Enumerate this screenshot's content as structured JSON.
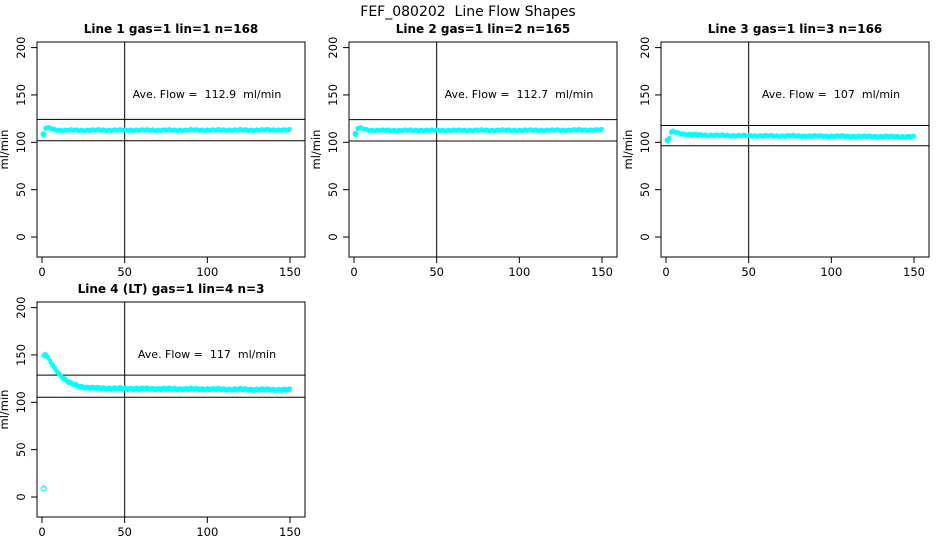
{
  "title": "FEF_080202  Line Flow Shapes",
  "accent_color": "#00FFFF",
  "axis_color": "#000000",
  "chart_data": [
    {
      "type": "scatter",
      "title": "Line 1 gas=1 lin=1 n=168",
      "line": 1,
      "gas": 1,
      "lin": 1,
      "n": 168,
      "annotation": "Ave. Flow =  112.9  ml/min",
      "ave_flow": 112.9,
      "ylabel": "ml/min",
      "xlabel": "",
      "xlim": [
        0,
        150
      ],
      "ylim": [
        0,
        200
      ],
      "xticks": [
        0,
        50,
        100,
        150
      ],
      "yticks": [
        0,
        50,
        100,
        150,
        200
      ],
      "vline_x": 50,
      "band_lines": [
        124.2,
        101.6
      ],
      "band_halfwidth": 0.6,
      "color": "#00FFFF",
      "points": [
        [
          1,
          108.5
        ],
        [
          2,
          114.8
        ],
        [
          3,
          115.2
        ],
        [
          4,
          115.0
        ],
        [
          5,
          114.6
        ],
        [
          6,
          114.2
        ],
        [
          8,
          113.4
        ],
        [
          10,
          112.9
        ],
        [
          14,
          112.7
        ],
        [
          18,
          112.9
        ],
        [
          22,
          112.7
        ],
        [
          26,
          112.9
        ],
        [
          30,
          112.8
        ],
        [
          35,
          113.0
        ],
        [
          40,
          112.8
        ],
        [
          45,
          112.9
        ],
        [
          50,
          112.8
        ],
        [
          55,
          113.0
        ],
        [
          60,
          112.8
        ],
        [
          65,
          112.9
        ],
        [
          70,
          112.9
        ],
        [
          75,
          113.0
        ],
        [
          80,
          112.8
        ],
        [
          85,
          112.9
        ],
        [
          90,
          113.0
        ],
        [
          95,
          112.9
        ],
        [
          100,
          113.0
        ],
        [
          105,
          112.9
        ],
        [
          110,
          113.0
        ],
        [
          115,
          113.0
        ],
        [
          120,
          113.0
        ],
        [
          125,
          112.9
        ],
        [
          130,
          113.0
        ],
        [
          135,
          113.0
        ],
        [
          140,
          113.1
        ],
        [
          145,
          113.1
        ],
        [
          150,
          113.0
        ]
      ],
      "outlier_points": []
    },
    {
      "type": "scatter",
      "title": "Line 2 gas=1 lin=2 n=165",
      "line": 2,
      "gas": 1,
      "lin": 2,
      "n": 165,
      "annotation": "Ave. Flow =  112.7  ml/min",
      "ave_flow": 112.7,
      "ylabel": "ml/min",
      "xlabel": "",
      "xlim": [
        0,
        150
      ],
      "ylim": [
        0,
        200
      ],
      "xticks": [
        0,
        50,
        100,
        150
      ],
      "yticks": [
        0,
        50,
        100,
        150,
        200
      ],
      "vline_x": 50,
      "band_lines": [
        124.0,
        101.4
      ],
      "band_halfwidth": 0.6,
      "color": "#00FFFF",
      "points": [
        [
          1,
          108.8
        ],
        [
          2,
          114.5
        ],
        [
          3,
          115.0
        ],
        [
          4,
          114.8
        ],
        [
          5,
          114.4
        ],
        [
          6,
          114.0
        ],
        [
          8,
          113.2
        ],
        [
          10,
          112.8
        ],
        [
          14,
          112.6
        ],
        [
          18,
          112.7
        ],
        [
          22,
          112.6
        ],
        [
          26,
          112.7
        ],
        [
          30,
          112.7
        ],
        [
          35,
          112.6
        ],
        [
          40,
          112.7
        ],
        [
          45,
          112.6
        ],
        [
          50,
          112.7
        ],
        [
          55,
          112.7
        ],
        [
          60,
          112.6
        ],
        [
          65,
          112.7
        ],
        [
          70,
          112.7
        ],
        [
          75,
          112.8
        ],
        [
          80,
          112.7
        ],
        [
          85,
          112.7
        ],
        [
          90,
          112.8
        ],
        [
          95,
          112.7
        ],
        [
          100,
          112.8
        ],
        [
          105,
          112.7
        ],
        [
          110,
          112.8
        ],
        [
          115,
          112.8
        ],
        [
          120,
          112.8
        ],
        [
          125,
          112.9
        ],
        [
          130,
          112.9
        ],
        [
          135,
          113.0
        ],
        [
          140,
          113.0
        ],
        [
          145,
          113.1
        ],
        [
          150,
          113.1
        ]
      ],
      "outlier_points": []
    },
    {
      "type": "scatter",
      "title": "Line 3 gas=1 lin=3 n=166",
      "line": 3,
      "gas": 1,
      "lin": 3,
      "n": 166,
      "annotation": "Ave. Flow =  107  ml/min",
      "ave_flow": 107,
      "ylabel": "ml/min",
      "xlabel": "",
      "xlim": [
        0,
        150
      ],
      "ylim": [
        0,
        200
      ],
      "xticks": [
        0,
        50,
        100,
        150
      ],
      "yticks": [
        0,
        50,
        100,
        150,
        200
      ],
      "vline_x": 50,
      "band_lines": [
        117.7,
        96.3
      ],
      "band_halfwidth": 0.7,
      "color": "#00FFFF",
      "points": [
        [
          1,
          102.0
        ],
        [
          2,
          104.5
        ],
        [
          3,
          110.5
        ],
        [
          4,
          111.2
        ],
        [
          5,
          111.0
        ],
        [
          6,
          110.5
        ],
        [
          8,
          109.6
        ],
        [
          10,
          109.0
        ],
        [
          14,
          108.3
        ],
        [
          18,
          107.9
        ],
        [
          22,
          107.7
        ],
        [
          26,
          107.5
        ],
        [
          30,
          107.4
        ],
        [
          35,
          107.2
        ],
        [
          40,
          107.1
        ],
        [
          45,
          107.0
        ],
        [
          50,
          107.0
        ],
        [
          55,
          106.9
        ],
        [
          60,
          106.8
        ],
        [
          65,
          106.8
        ],
        [
          70,
          106.7
        ],
        [
          75,
          106.7
        ],
        [
          80,
          106.6
        ],
        [
          85,
          106.6
        ],
        [
          90,
          106.5
        ],
        [
          95,
          106.5
        ],
        [
          100,
          106.4
        ],
        [
          105,
          106.4
        ],
        [
          110,
          106.3
        ],
        [
          115,
          106.3
        ],
        [
          120,
          106.2
        ],
        [
          125,
          106.2
        ],
        [
          130,
          106.1
        ],
        [
          135,
          106.1
        ],
        [
          140,
          106.0
        ],
        [
          145,
          105.9
        ],
        [
          150,
          105.9
        ]
      ],
      "outlier_points": []
    },
    {
      "type": "scatter",
      "title": "Line 4 (LT) gas=1 lin=4 n=3",
      "line": 4,
      "gas": 1,
      "lin": 4,
      "n": 3,
      "annotation": "Ave. Flow =  117  ml/min",
      "ave_flow": 117,
      "ylabel": "ml/min",
      "xlabel": "",
      "xlim": [
        0,
        150
      ],
      "ylim": [
        0,
        200
      ],
      "xticks": [
        0,
        50,
        100,
        150
      ],
      "yticks": [
        0,
        50,
        100,
        150,
        200
      ],
      "vline_x": 50,
      "band_lines": [
        128.7,
        105.3
      ],
      "band_halfwidth": 1.0,
      "color": "#00FFFF",
      "points": [
        [
          1.5,
          149.5
        ],
        [
          2,
          150.2
        ],
        [
          2.5,
          150.0
        ],
        [
          3,
          148.5
        ],
        [
          4,
          145.8
        ],
        [
          5,
          143.0
        ],
        [
          6,
          140.2
        ],
        [
          7,
          137.6
        ],
        [
          8,
          135.1
        ],
        [
          9,
          132.8
        ],
        [
          10,
          130.7
        ],
        [
          11,
          128.8
        ],
        [
          12,
          127.0
        ],
        [
          13,
          125.4
        ],
        [
          14,
          123.9
        ],
        [
          15,
          122.6
        ],
        [
          16,
          121.5
        ],
        [
          17,
          120.5
        ],
        [
          18,
          119.6
        ],
        [
          19,
          118.9
        ],
        [
          20,
          118.2
        ],
        [
          22,
          117.2
        ],
        [
          24,
          116.4
        ],
        [
          26,
          115.9
        ],
        [
          28,
          115.5
        ],
        [
          30,
          115.2
        ],
        [
          33,
          115.0
        ],
        [
          36,
          114.8
        ],
        [
          40,
          114.7
        ],
        [
          45,
          114.6
        ],
        [
          50,
          114.5
        ],
        [
          55,
          114.4
        ],
        [
          60,
          114.3
        ],
        [
          65,
          114.3
        ],
        [
          70,
          114.2
        ],
        [
          75,
          114.2
        ],
        [
          80,
          114.1
        ],
        [
          85,
          114.0
        ],
        [
          90,
          114.0
        ],
        [
          95,
          113.9
        ],
        [
          100,
          113.9
        ],
        [
          105,
          113.8
        ],
        [
          110,
          113.7
        ],
        [
          115,
          113.7
        ],
        [
          120,
          113.6
        ],
        [
          125,
          113.5
        ],
        [
          130,
          113.5
        ],
        [
          135,
          113.4
        ],
        [
          140,
          113.4
        ],
        [
          145,
          113.3
        ],
        [
          150,
          113.2
        ]
      ],
      "outlier_points": [
        [
          1,
          9
        ]
      ]
    }
  ]
}
